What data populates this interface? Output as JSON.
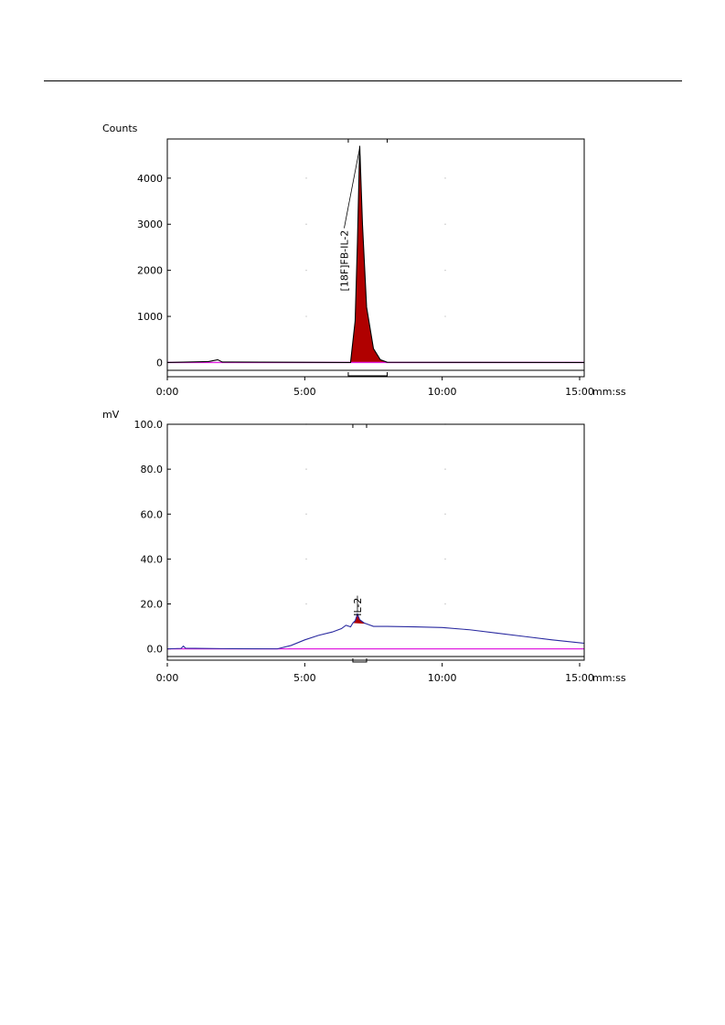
{
  "colors": {
    "trace": "#000000",
    "baseline": "#e020e0",
    "peak_fill": "#b00000",
    "uv_trace": "#2a2aa0",
    "grid": "#c0c0c0"
  },
  "chart_data": [
    {
      "type": "line",
      "ylabel": "Counts",
      "xunit": "mm:ss",
      "x_ticks": [
        "0:00",
        "5:00",
        "10:00",
        "15:00"
      ],
      "y_ticks": [
        "0",
        "1000",
        "2000",
        "3000",
        "4000"
      ],
      "xlim": [
        "0:00",
        "15:10"
      ],
      "ylim": [
        -150,
        4850
      ],
      "grid": "dotted",
      "peak": {
        "label": "[18F]FB-IL-2",
        "apex_time": "7:00",
        "apex_value": 4700,
        "start": "6:35",
        "end": "8:00"
      },
      "series": [
        {
          "values": [
            [
              "0:00",
              0
            ],
            [
              "1:30",
              20
            ],
            [
              "1:50",
              60
            ],
            [
              "2:00",
              10
            ],
            [
              "6:40",
              0
            ],
            [
              "6:50",
              900
            ],
            [
              "6:55",
              2600
            ],
            [
              "7:00",
              4700
            ],
            [
              "7:06",
              3000
            ],
            [
              "7:15",
              1200
            ],
            [
              "7:30",
              300
            ],
            [
              "7:45",
              60
            ],
            [
              "8:00",
              5
            ],
            [
              "15:10",
              0
            ]
          ]
        }
      ]
    },
    {
      "type": "line",
      "ylabel": "mV",
      "xunit": "mm:ss",
      "x_ticks": [
        "0:00",
        "5:00",
        "10:00",
        "15:00"
      ],
      "y_ticks": [
        "0.0",
        "20.0",
        "40.0",
        "60.0",
        "80.0",
        "100.0"
      ],
      "xlim": [
        "0:00",
        "15:10"
      ],
      "ylim": [
        -3,
        100
      ],
      "grid": "dotted",
      "peak": {
        "label": "IL-2",
        "apex_time": "6:55",
        "apex_value": 15.5,
        "start": "6:45",
        "end": "7:15"
      },
      "series": [
        {
          "values": [
            [
              "0:00",
              0
            ],
            [
              "0:30",
              0.2
            ],
            [
              "0:35",
              1.2
            ],
            [
              "0:40",
              0.3
            ],
            [
              "2:00",
              0.1
            ],
            [
              "4:00",
              0
            ],
            [
              "4:30",
              1.5
            ],
            [
              "5:00",
              4
            ],
            [
              "5:30",
              6
            ],
            [
              "6:00",
              7.5
            ],
            [
              "6:20",
              9
            ],
            [
              "6:30",
              10.5
            ],
            [
              "6:40",
              9.8
            ],
            [
              "6:45",
              11.5
            ],
            [
              "6:50",
              12.5
            ],
            [
              "6:55",
              15.5
            ],
            [
              "7:00",
              13
            ],
            [
              "7:10",
              11.5
            ],
            [
              "7:30",
              10
            ],
            [
              "8:00",
              10
            ],
            [
              "9:00",
              9.8
            ],
            [
              "10:00",
              9.5
            ],
            [
              "11:00",
              8.5
            ],
            [
              "12:00",
              7
            ],
            [
              "13:00",
              5.5
            ],
            [
              "14:00",
              4
            ],
            [
              "15:10",
              2.5
            ]
          ]
        }
      ]
    }
  ]
}
